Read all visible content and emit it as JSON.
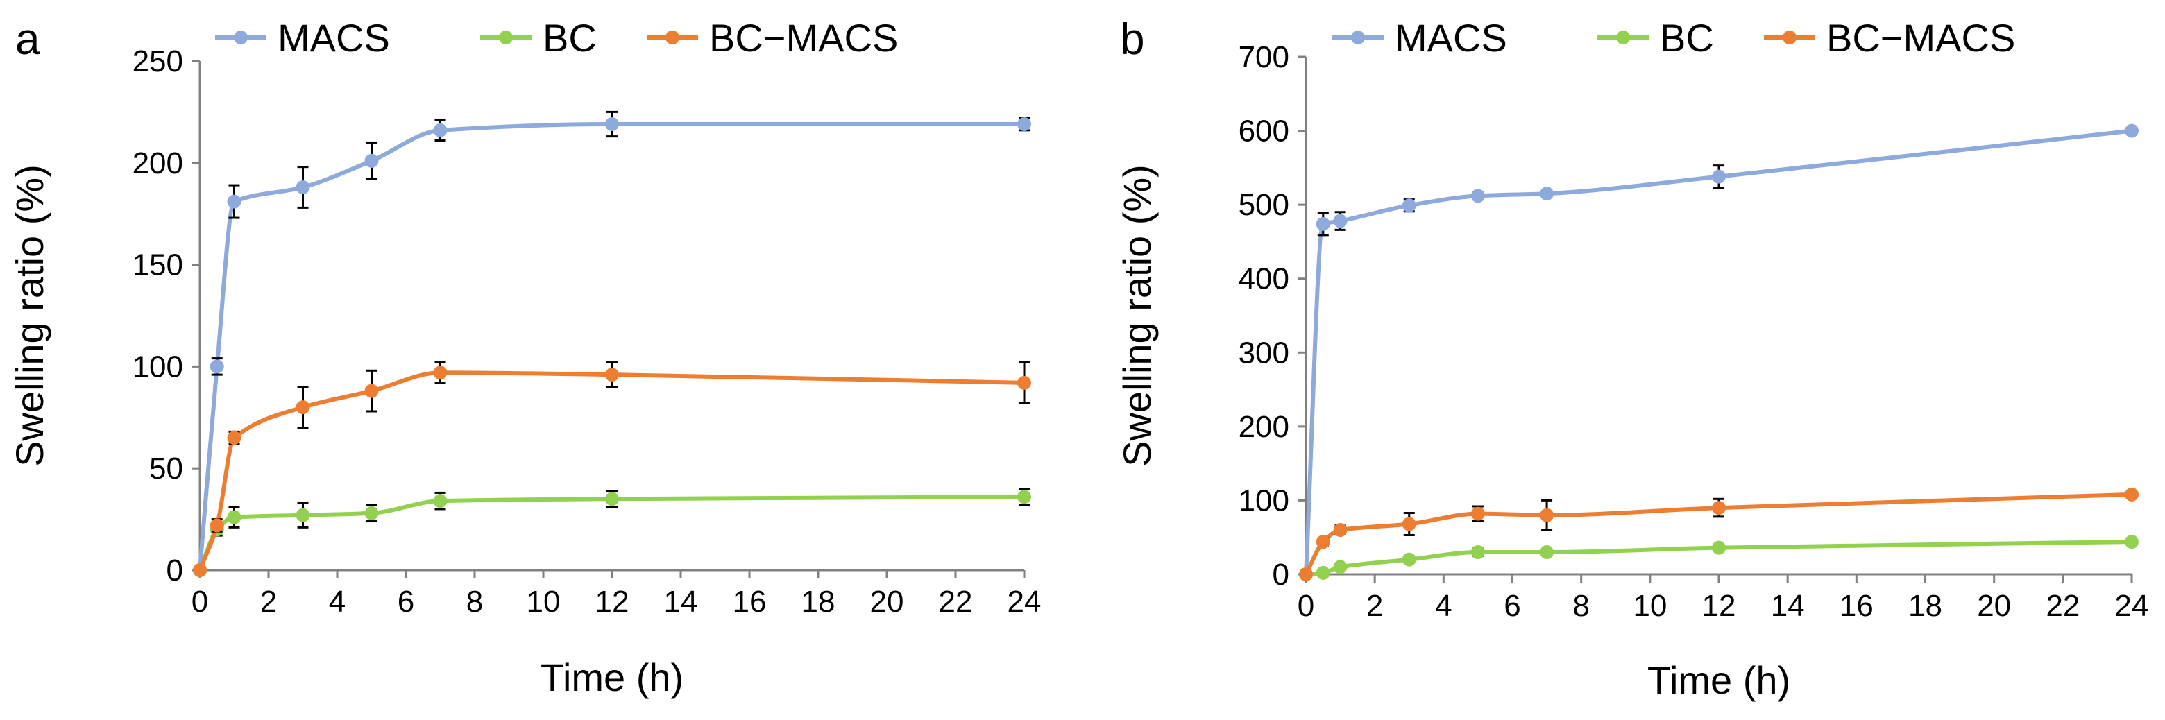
{
  "figure": {
    "series_colors": {
      "MACS": "#8EA9DB",
      "BC": "#92D050",
      "BC−MACS": "#ED7D31"
    },
    "error_bar_color": "#000000"
  },
  "chart_data": [
    {
      "panel": "a",
      "type": "line",
      "xlabel": "Time (h)",
      "ylabel": "Swelling ratio (%)",
      "xlim": [
        0,
        24
      ],
      "ylim": [
        0,
        250
      ],
      "xticks": [
        0,
        2,
        4,
        6,
        8,
        10,
        12,
        14,
        16,
        18,
        20,
        22,
        24
      ],
      "yticks": [
        0,
        50,
        100,
        150,
        200,
        250
      ],
      "grid": false,
      "legend": "top",
      "series": [
        {
          "name": "MACS",
          "x": [
            0,
            0.5,
            1,
            3,
            5,
            7,
            12,
            24
          ],
          "y": [
            0,
            100,
            181,
            188,
            201,
            216,
            219,
            219
          ],
          "err": [
            0,
            4,
            8,
            10,
            9,
            5,
            6,
            3
          ]
        },
        {
          "name": "BC",
          "x": [
            0,
            0.5,
            1,
            3,
            5,
            7,
            12,
            24
          ],
          "y": [
            0,
            20,
            26,
            27,
            28,
            34,
            35,
            36
          ],
          "err": [
            0,
            3,
            5,
            6,
            4,
            4,
            4,
            4
          ]
        },
        {
          "name": "BC−MACS",
          "x": [
            0,
            0.5,
            1,
            3,
            5,
            7,
            12,
            24
          ],
          "y": [
            0,
            22,
            65,
            80,
            88,
            97,
            96,
            92
          ],
          "err": [
            0,
            3,
            3,
            10,
            10,
            5,
            6,
            10
          ]
        }
      ]
    },
    {
      "panel": "b",
      "type": "line",
      "xlabel": "Time (h)",
      "ylabel": "Swelling ratio (%)",
      "xlim": [
        0,
        24
      ],
      "ylim": [
        0,
        700
      ],
      "xticks": [
        0,
        2,
        4,
        6,
        8,
        10,
        12,
        14,
        16,
        18,
        20,
        22,
        24
      ],
      "yticks": [
        0,
        100,
        200,
        300,
        400,
        500,
        600,
        700
      ],
      "grid": false,
      "legend": "top",
      "series": [
        {
          "name": "MACS",
          "x": [
            0,
            0.5,
            1,
            3,
            5,
            7,
            12,
            24
          ],
          "y": [
            0,
            474,
            478,
            499,
            512,
            515,
            538,
            600
          ],
          "err": [
            0,
            15,
            12,
            8,
            5,
            5,
            15,
            4
          ]
        },
        {
          "name": "BC",
          "x": [
            0,
            0.5,
            1,
            3,
            5,
            7,
            12,
            24
          ],
          "y": [
            0,
            2,
            10,
            20,
            30,
            30,
            36,
            44
          ],
          "err": [
            0,
            2,
            3,
            3,
            5,
            3,
            4,
            3
          ]
        },
        {
          "name": "BC−MACS",
          "x": [
            0,
            0.5,
            1,
            3,
            5,
            7,
            12,
            24
          ],
          "y": [
            0,
            44,
            60,
            68,
            82,
            80,
            90,
            108
          ],
          "err": [
            0,
            5,
            6,
            15,
            10,
            20,
            12,
            5
          ]
        }
      ]
    }
  ]
}
